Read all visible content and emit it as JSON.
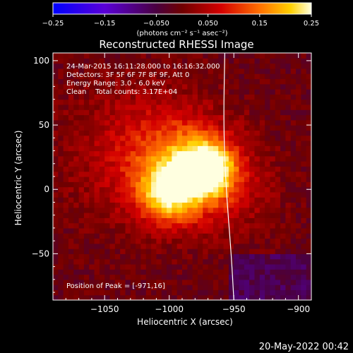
{
  "chart_data": {
    "type": "heatmap",
    "title": "Reconstructed RHESSI Image",
    "xlabel": "Heliocentric X (arcsec)",
    "ylabel": "Heliocentric Y (arcsec)",
    "xlim": [
      -1090,
      -890
    ],
    "ylim": [
      -86,
      106
    ],
    "xticks": [
      -1050,
      -1000,
      -950,
      -900
    ],
    "xtick_labels": [
      "−1050",
      "−1000",
      "−950",
      "−900"
    ],
    "yticks": [
      -50,
      0,
      50,
      100
    ],
    "ytick_labels": [
      "−50",
      "0",
      "50",
      "100"
    ],
    "colorbar": {
      "range": [
        -0.25,
        0.25
      ],
      "ticks": [
        -0.25,
        -0.15,
        -0.05,
        0.05,
        0.15,
        0.25
      ],
      "tick_labels": [
        "−0.25",
        "−0.15",
        "−0.050",
        "0.050",
        "0.15",
        "0.25"
      ],
      "unit_label": "(photons cm⁻² s⁻¹ asec⁻²)"
    },
    "info_lines": [
      "24-Mar-2015 16:11:28.000 to 16:16:32.000",
      "Detectors: 3F 5F 6F 7F 8F 9F, Att 0",
      "Energy Range: 3.0 - 6.0 keV",
      "Clean    Total counts: 3.17E+04"
    ],
    "peak_label": "Position of Peak = [-971,16]",
    "peak": {
      "x": -971,
      "y": 16
    },
    "sources": [
      {
        "x": -971,
        "y": 16,
        "amp": 0.25,
        "sigma": 14
      },
      {
        "x": -1000,
        "y": -2,
        "amp": 0.18,
        "sigma": 16
      },
      {
        "x": -990,
        "y": 20,
        "amp": 0.13,
        "sigma": 28
      },
      {
        "x": -1030,
        "y": 30,
        "amp": 0.06,
        "sigma": 40
      },
      {
        "x": -950,
        "y": 0,
        "amp": 0.05,
        "sigma": 25
      }
    ],
    "limb_curve": [
      [
        -957,
        106
      ],
      [
        -958,
        50
      ],
      [
        -956,
        0
      ],
      [
        -952,
        -50
      ],
      [
        -950,
        -86
      ]
    ]
  },
  "footer_date": "20-May-2022 00:42"
}
